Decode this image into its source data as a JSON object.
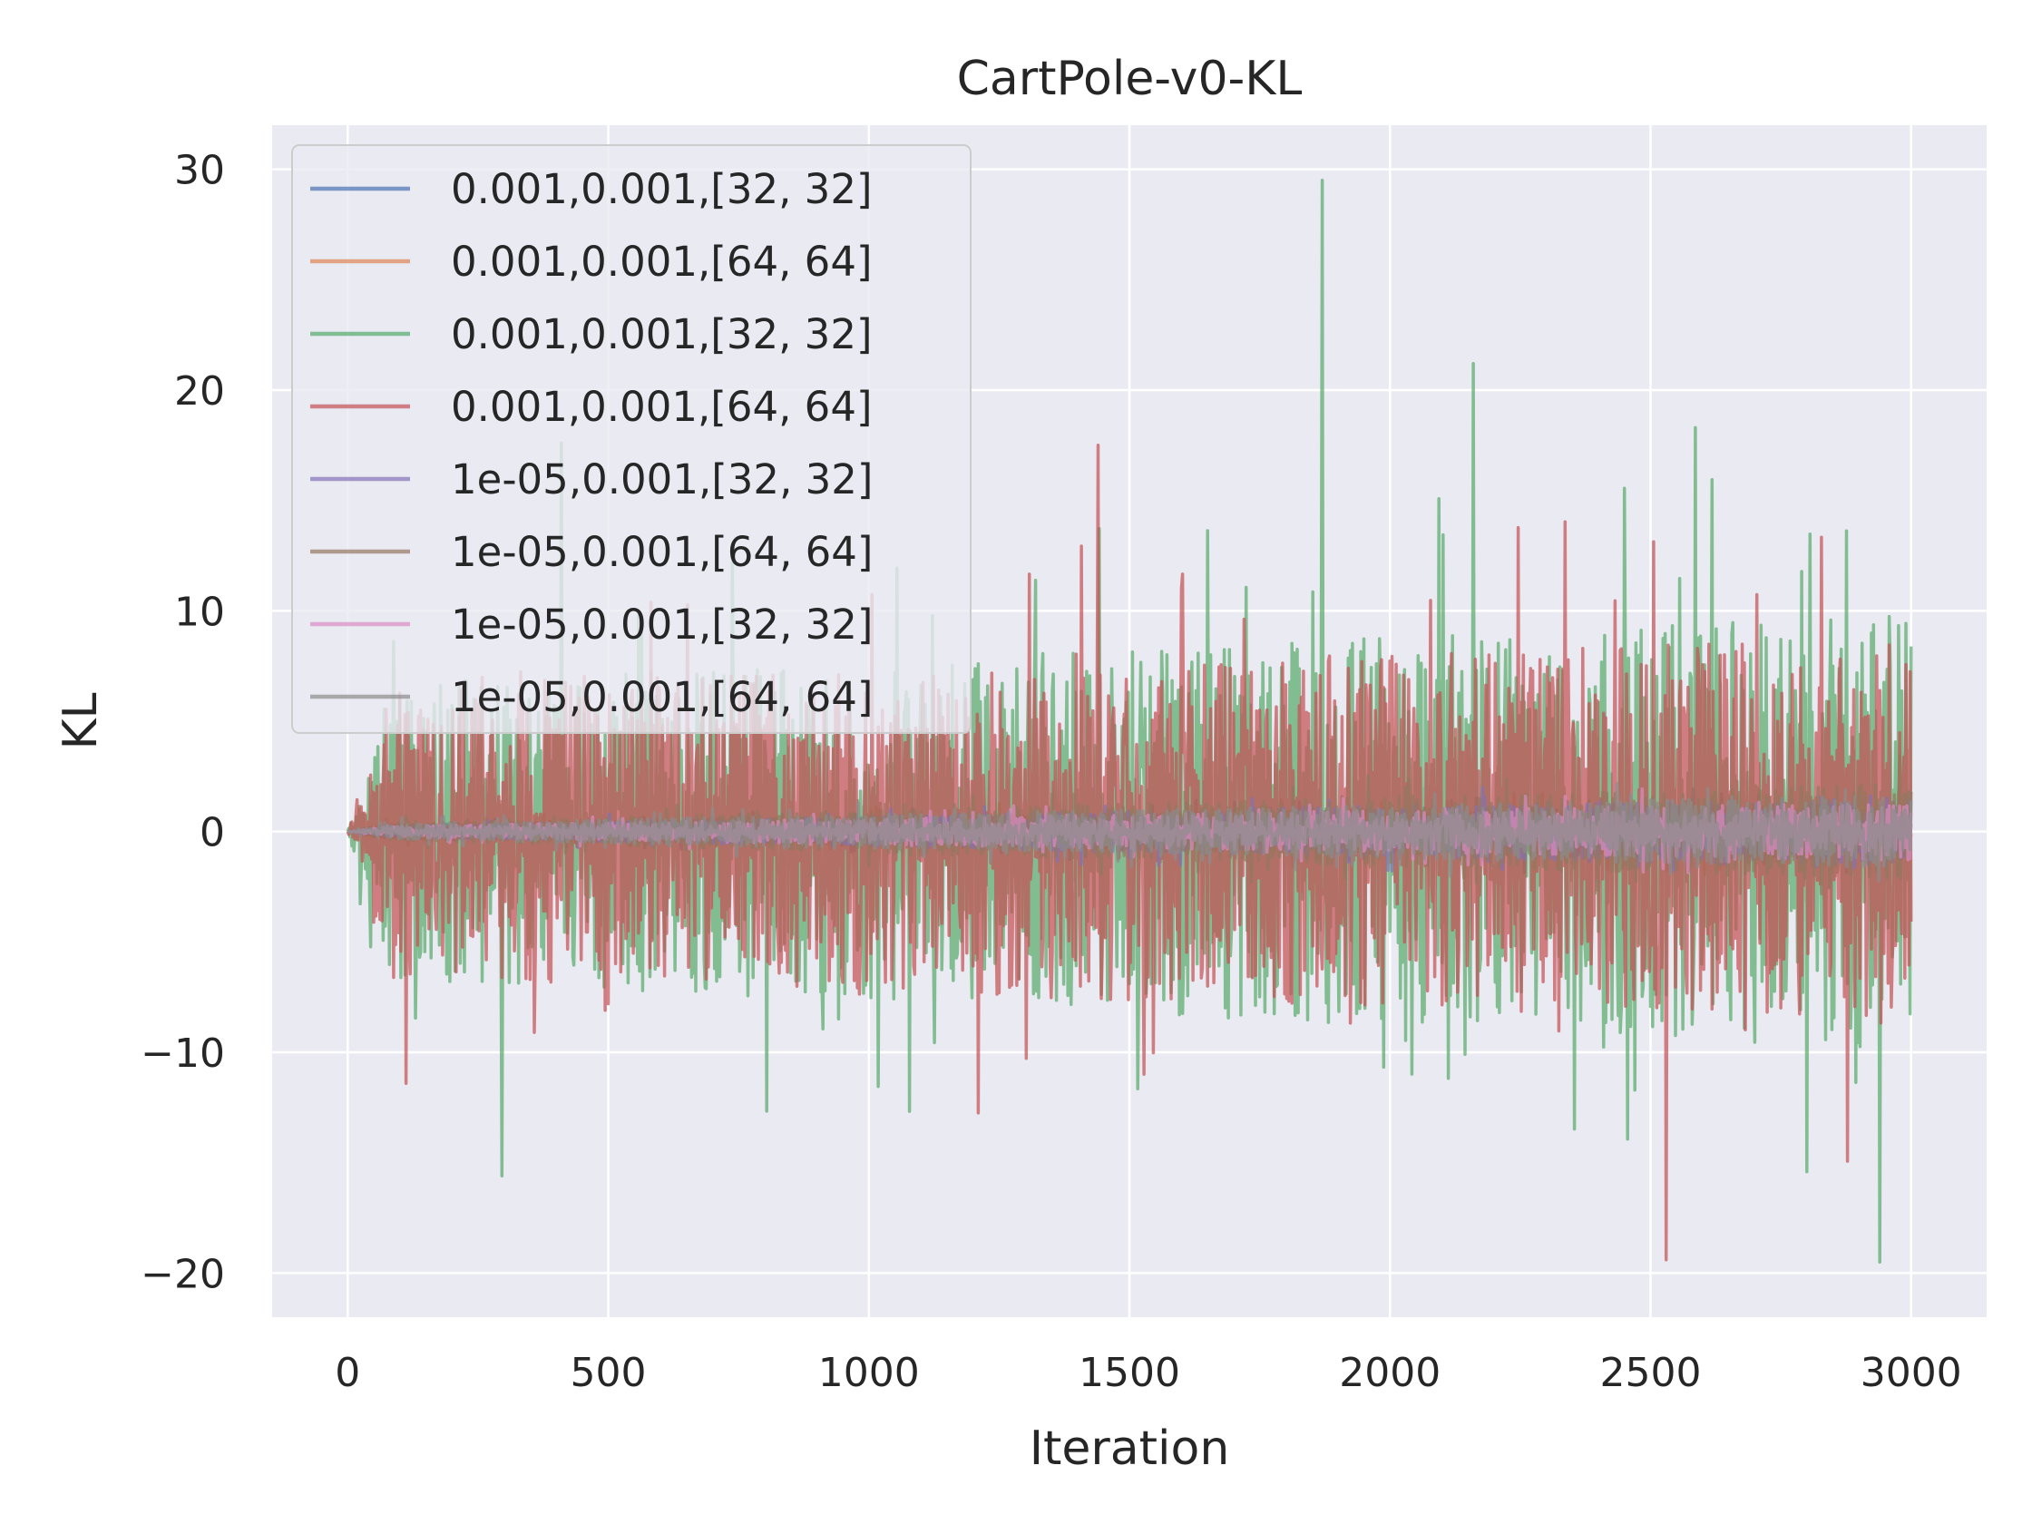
{
  "chart_data": {
    "type": "line",
    "title": "CartPole-v0-KL",
    "xlabel": "Iteration",
    "ylabel": "KL",
    "xlim": [
      -145,
      3145
    ],
    "ylim": [
      -22,
      32
    ],
    "xticks": [
      0,
      500,
      1000,
      1500,
      2000,
      2500,
      3000
    ],
    "xtick_labels": [
      "0",
      "500",
      "1000",
      "1500",
      "2000",
      "2500",
      "3000"
    ],
    "yticks": [
      -20,
      -10,
      0,
      10,
      20,
      30
    ],
    "ytick_labels": [
      "−20",
      "−10",
      "0",
      "10",
      "20",
      "30"
    ],
    "grid": true,
    "legend_position": "upper-left",
    "background": "#eaeaf2",
    "series": [
      {
        "name": "0.001,0.001,[32, 32]",
        "color": "#4c72b0",
        "amp_start": 0.3,
        "amp_end": 1.2,
        "spike": 2
      },
      {
        "name": "0.001,0.001,[64, 64]",
        "color": "#dd8452",
        "amp_start": 0.3,
        "amp_end": 1.2,
        "spike": 2
      },
      {
        "name": "0.001,0.001,[32, 32]",
        "color": "#55a868",
        "amp_start": 6,
        "amp_end": 9,
        "spike": 29.5,
        "min": -19.5
      },
      {
        "name": "0.001,0.001,[64, 64]",
        "color": "#c44e52",
        "amp_start": 6,
        "amp_end": 8,
        "spike": 17.5,
        "min": -19.5
      },
      {
        "name": "1e-05,0.001,[32, 32]",
        "color": "#8172b3",
        "amp_start": 0.2,
        "amp_end": 1.5,
        "spike": 2
      },
      {
        "name": "1e-05,0.001,[64, 64]",
        "color": "#937860",
        "amp_start": 0.3,
        "amp_end": 2,
        "spike": 3.5
      },
      {
        "name": "1e-05,0.001,[32, 32]",
        "color": "#da8bc3",
        "amp_start": 0.2,
        "amp_end": 1.2,
        "spike": 2
      },
      {
        "name": "1e-05,0.001,[64, 64]",
        "color": "#8c8c8c",
        "amp_start": 0.3,
        "amp_end": 1.5,
        "spike": 2.5
      }
    ],
    "notable_points": [
      {
        "series": 2,
        "x": 1870,
        "y": 29.5
      },
      {
        "series": 2,
        "x": 2160,
        "y": 21.2
      },
      {
        "series": 2,
        "x": 2585,
        "y": 18.3
      },
      {
        "series": 3,
        "x": 1440,
        "y": 17.5
      },
      {
        "series": 2,
        "x": 410,
        "y": 17.6
      },
      {
        "series": 3,
        "x": 2530,
        "y": -19.4
      },
      {
        "series": 2,
        "x": 2940,
        "y": -19.7
      },
      {
        "series": 2,
        "x": 295,
        "y": -15.6
      }
    ]
  }
}
